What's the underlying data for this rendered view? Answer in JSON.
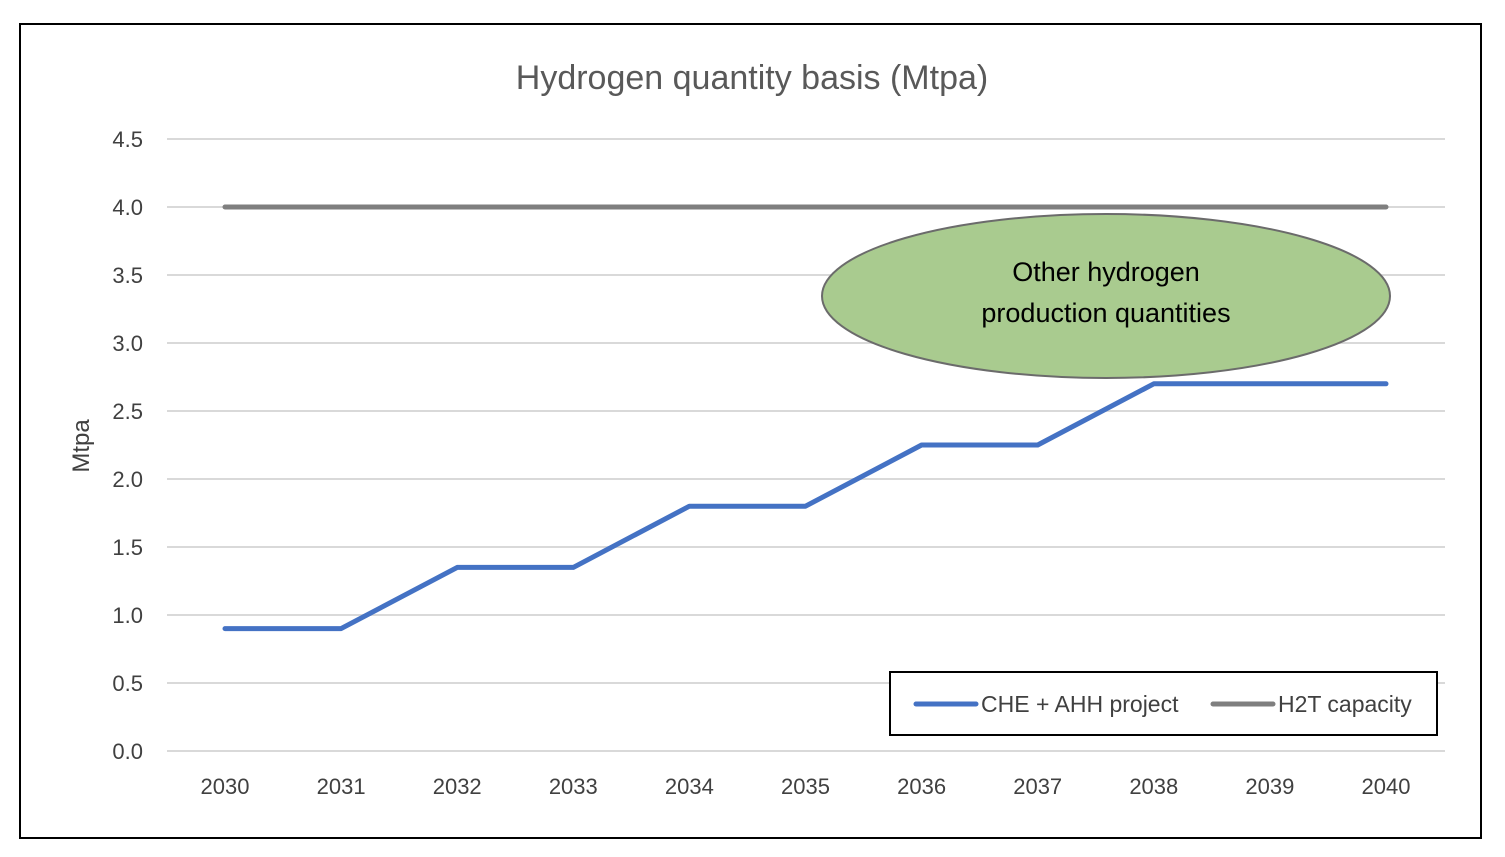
{
  "chart_data": {
    "type": "line",
    "title": "Hydrogen quantity  basis (Mtpa)",
    "xlabel": "",
    "ylabel": "Mtpa",
    "categories": [
      "2030",
      "2031",
      "2032",
      "2033",
      "2034",
      "2035",
      "2036",
      "2037",
      "2038",
      "2039",
      "2040"
    ],
    "ylim": [
      0,
      4.5
    ],
    "yticks": [
      "0.0",
      "0.5",
      "1.0",
      "1.5",
      "2.0",
      "2.5",
      "3.0",
      "3.5",
      "4.0",
      "4.5"
    ],
    "grid": true,
    "legend_position": "bottom-right",
    "series": [
      {
        "name": "CHE + AHH project",
        "color": "#4472C4",
        "values": [
          0.9,
          0.9,
          1.35,
          1.35,
          1.8,
          1.8,
          2.25,
          2.25,
          2.7,
          2.7,
          2.7
        ]
      },
      {
        "name": "H2T capacity",
        "color": "#7F7F7F",
        "values": [
          4.0,
          4.0,
          4.0,
          4.0,
          4.0,
          4.0,
          4.0,
          4.0,
          4.0,
          4.0,
          4.0
        ]
      }
    ],
    "annotation": {
      "lines": [
        "Other hydrogen",
        "production quantities"
      ],
      "fill": "#A9CB8F"
    }
  }
}
